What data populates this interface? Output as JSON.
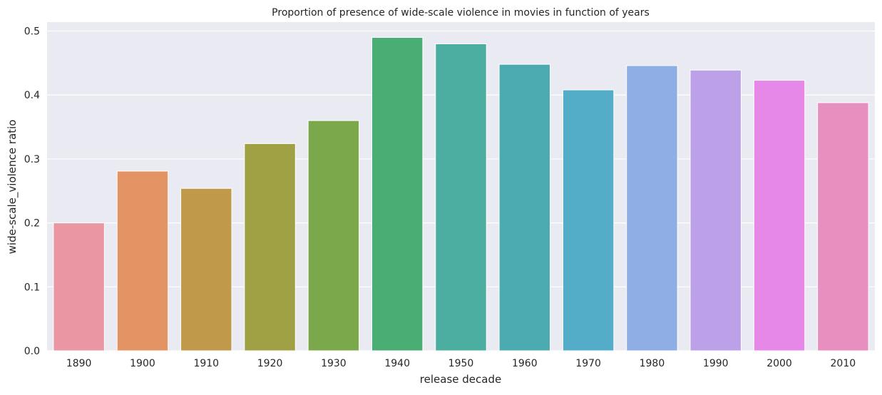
{
  "chart_data": {
    "type": "bar",
    "title": "Proportion of presence of wide-scale violence in movies in function of years",
    "xlabel": "release decade",
    "ylabel": "wide-scale_violence ratio",
    "categories": [
      "1890",
      "1900",
      "1910",
      "1920",
      "1930",
      "1940",
      "1950",
      "1960",
      "1970",
      "1980",
      "1990",
      "2000",
      "2010"
    ],
    "values": [
      0.2,
      0.281,
      0.254,
      0.324,
      0.36,
      0.49,
      0.48,
      0.448,
      0.408,
      0.446,
      0.439,
      0.423,
      0.388
    ],
    "colors": [
      "#ea96a3",
      "#e39364",
      "#c09a4a",
      "#a0a045",
      "#7ba84a",
      "#4aae74",
      "#4baea0",
      "#4cabb0",
      "#53acc8",
      "#8faee6",
      "#bca1e8",
      "#e588e7",
      "#e790bf"
    ],
    "yticks": [
      "0.0",
      "0.1",
      "0.2",
      "0.3",
      "0.4",
      "0.5"
    ],
    "ylim": [
      0,
      0.514
    ],
    "grid": true,
    "background": "#eaeaf2",
    "legend": "none"
  }
}
